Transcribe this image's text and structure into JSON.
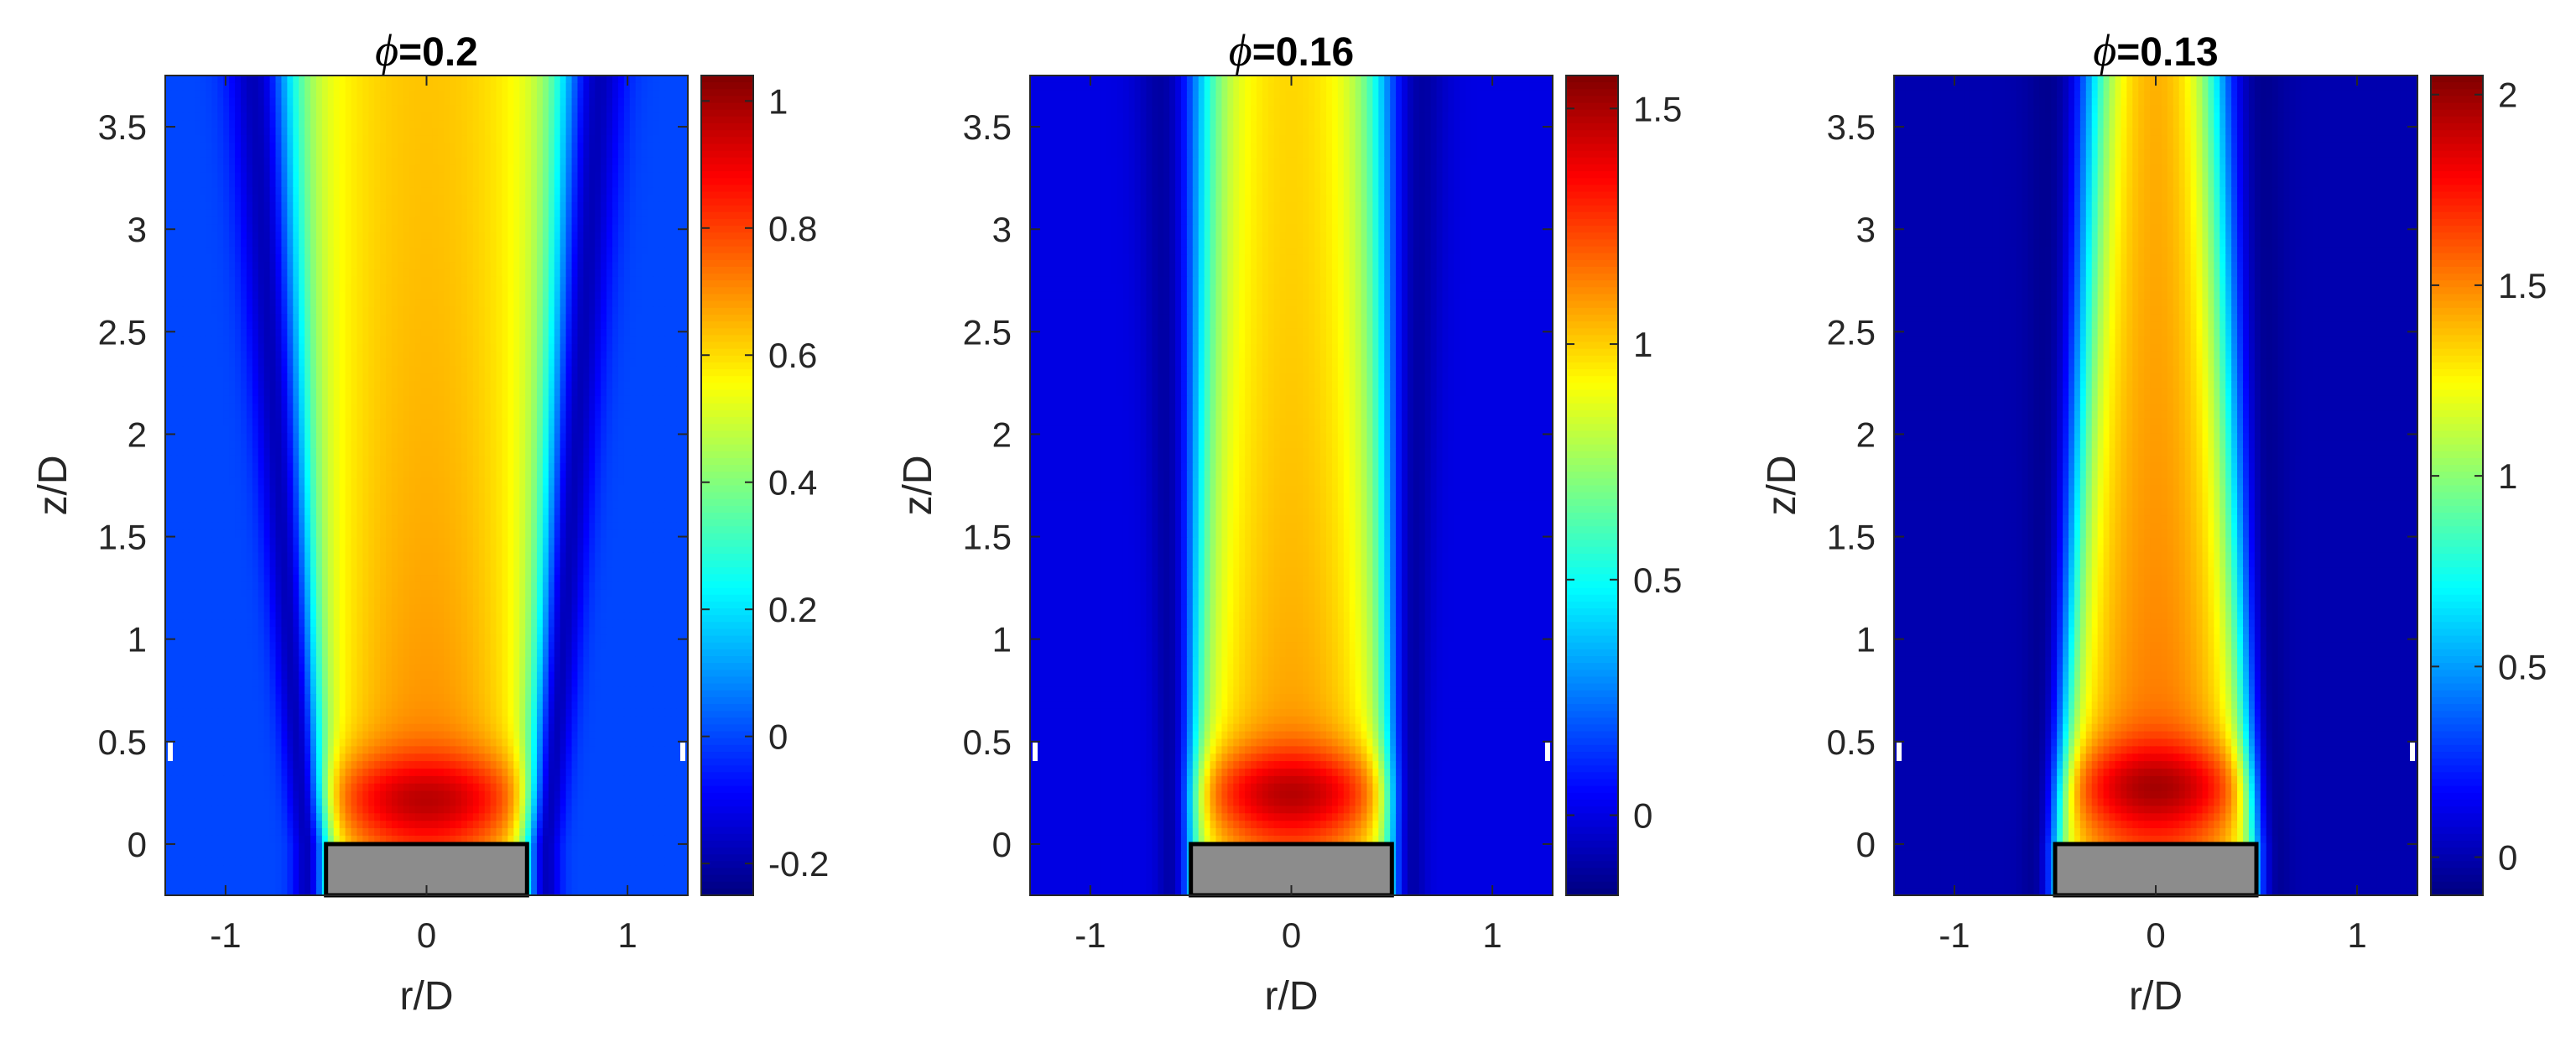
{
  "chart_data": [
    {
      "type": "heatmap",
      "title_symbol": "ϕ",
      "title_value": "=0.2",
      "xlabel": "r/D",
      "ylabel": "z/D",
      "xlim": [
        -1.3,
        1.3
      ],
      "ylim": [
        -0.25,
        3.75
      ],
      "xticks": [
        -1,
        0,
        1
      ],
      "yticks": [
        0,
        0.5,
        1,
        1.5,
        2,
        2.5,
        3,
        3.5
      ],
      "colorbar": {
        "min": -0.25,
        "max": 1.04,
        "ticks": [
          -0.2,
          0,
          0.2,
          0.4,
          0.6,
          0.8,
          1
        ]
      },
      "nozzle": {
        "r": [
          -0.5,
          0.5
        ],
        "z": [
          -0.25,
          0
        ]
      },
      "field": {
        "core": 0.62,
        "peak": 0.98,
        "peak_z": 0.22,
        "ambient": 0.0,
        "shear_min": -0.22,
        "edge_at_nozzle": 0.5,
        "edge_at_top": 0.68
      }
    },
    {
      "type": "heatmap",
      "title_symbol": "ϕ",
      "title_value": "=0.16",
      "xlabel": "r/D",
      "ylabel": "z/D",
      "xlim": [
        -1.3,
        1.3
      ],
      "ylim": [
        -0.25,
        3.75
      ],
      "xticks": [
        -1,
        0,
        1
      ],
      "yticks": [
        0,
        0.5,
        1,
        1.5,
        2,
        2.5,
        3,
        3.5
      ],
      "colorbar": {
        "min": -0.17,
        "max": 1.57,
        "ticks": [
          0,
          0.5,
          1,
          1.5
        ]
      },
      "nozzle": {
        "r": [
          -0.5,
          0.5
        ],
        "z": [
          -0.25,
          0
        ]
      },
      "field": {
        "core": 0.97,
        "peak": 1.5,
        "peak_z": 0.25,
        "ambient": 0.0,
        "shear_min": -0.15,
        "edge_at_nozzle": 0.5,
        "edge_at_top": 0.46
      }
    },
    {
      "type": "heatmap",
      "title_symbol": "ϕ",
      "title_value": "=0.13",
      "xlabel": "r/D",
      "ylabel": "z/D",
      "xlim": [
        -1.3,
        1.3
      ],
      "ylim": [
        -0.25,
        3.75
      ],
      "xticks": [
        -1,
        0,
        1
      ],
      "yticks": [
        0,
        0.5,
        1,
        1.5,
        2,
        2.5,
        3,
        3.5
      ],
      "colorbar": {
        "min": -0.1,
        "max": 2.05,
        "ticks": [
          0,
          0.5,
          1,
          1.5,
          2
        ]
      },
      "nozzle": {
        "r": [
          -0.5,
          0.5
        ],
        "z": [
          -0.25,
          0
        ]
      },
      "field": {
        "core": 1.4,
        "peak": 2.0,
        "peak_z": 0.28,
        "ambient": 0.0,
        "shear_min": -0.1,
        "edge_at_nozzle": 0.5,
        "edge_at_top": 0.33
      }
    }
  ]
}
